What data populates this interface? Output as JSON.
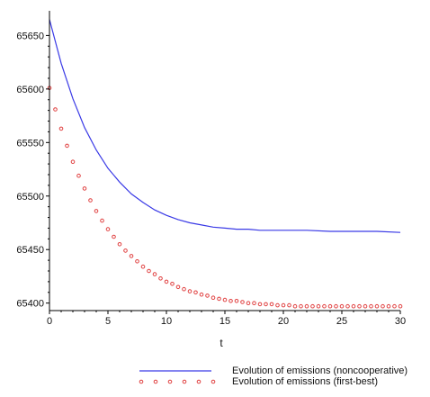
{
  "chart_data": {
    "type": "line",
    "xlabel": "t",
    "ylabel": "",
    "xlim": [
      0,
      30
    ],
    "ylim": [
      65393,
      65668
    ],
    "x_ticks": [
      0,
      5,
      10,
      15,
      20,
      25,
      30
    ],
    "y_ticks": [
      65400,
      65450,
      65500,
      65550,
      65600,
      65650
    ],
    "grid": false,
    "legend_position": "bottom",
    "series": [
      {
        "name": "Evolution of emissions (noncooperative)",
        "style": "solid",
        "color": "#3a3ae6",
        "x": [
          0,
          1,
          2,
          3,
          4,
          5,
          6,
          7,
          8,
          9,
          10,
          11,
          12,
          13,
          14,
          15,
          16,
          17,
          18,
          19,
          20,
          22,
          24,
          26,
          28,
          30
        ],
        "y": [
          65665,
          65624,
          65591,
          65564,
          65543,
          65526,
          65513,
          65502,
          65494,
          65487,
          65482,
          65478,
          65475,
          65473,
          65471,
          65470,
          65469,
          65469,
          65468,
          65468,
          65468,
          65468,
          65467,
          65467,
          65467,
          65466
        ]
      },
      {
        "name": "Evolution of emissions (first-best)",
        "style": "dots",
        "color": "#e04040",
        "x": [
          0,
          0.5,
          1,
          1.5,
          2,
          2.5,
          3,
          3.5,
          4,
          4.5,
          5,
          5.5,
          6,
          6.5,
          7,
          7.5,
          8,
          8.5,
          9,
          9.5,
          10,
          10.5,
          11,
          11.5,
          12,
          12.5,
          13,
          13.5,
          14,
          14.5,
          15,
          15.5,
          16,
          16.5,
          17,
          17.5,
          18,
          18.5,
          19,
          19.5,
          20,
          20.5,
          21,
          21.5,
          22,
          22.5,
          23,
          23.5,
          24,
          24.5,
          25,
          25.5,
          26,
          26.5,
          27,
          27.5,
          28,
          28.5,
          29,
          29.5,
          30
        ],
        "y": [
          65601,
          65581,
          65563,
          65547,
          65532,
          65519,
          65507,
          65496,
          65486,
          65477,
          65469,
          65462,
          65455,
          65449,
          65444,
          65439,
          65434,
          65430,
          65427,
          65423,
          65420,
          65418,
          65415,
          65413,
          65411,
          65410,
          65408,
          65407,
          65405,
          65404,
          65403,
          65402,
          65402,
          65401,
          65400,
          65400,
          65399,
          65399,
          65399,
          65398,
          65398,
          65398,
          65397,
          65397,
          65397,
          65397,
          65397,
          65397,
          65397,
          65397,
          65397,
          65397,
          65397,
          65397,
          65397,
          65397,
          65397,
          65397,
          65397,
          65397,
          65397
        ]
      }
    ]
  }
}
